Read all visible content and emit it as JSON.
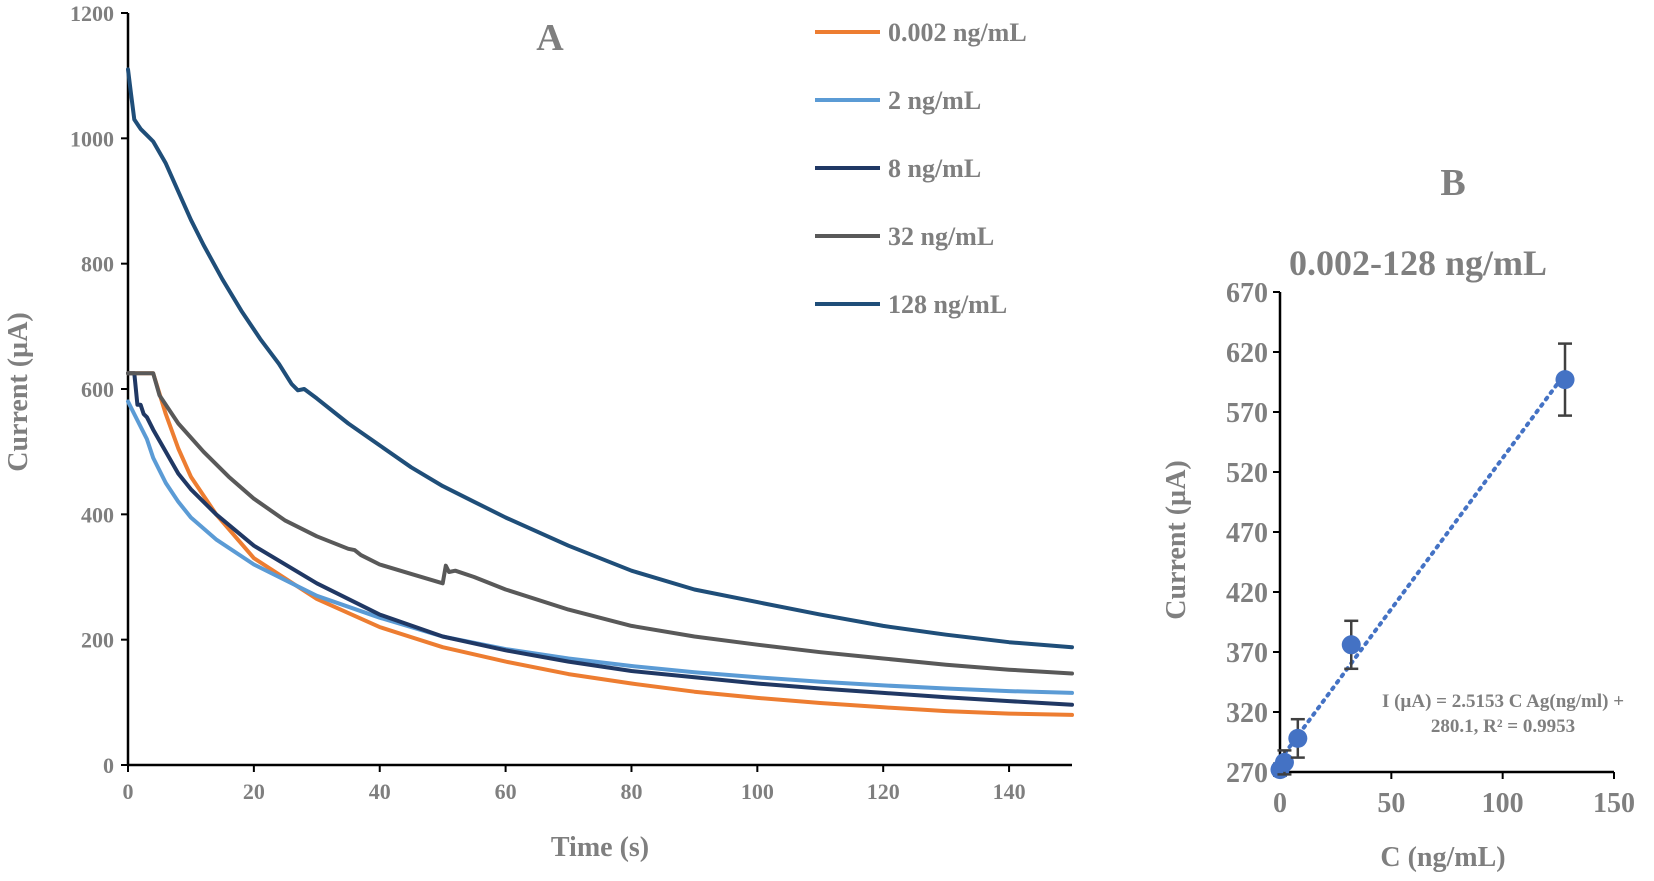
{
  "chart_data": [
    {
      "type": "line",
      "panel_label": "A",
      "title": "",
      "xlabel": "Time (s)",
      "ylabel": "Current (µA)",
      "xlim": [
        0,
        150
      ],
      "ylim": [
        0,
        1200
      ],
      "xticks": [
        0,
        20,
        40,
        60,
        80,
        100,
        120,
        140
      ],
      "yticks": [
        0,
        200,
        400,
        600,
        800,
        1000,
        1200
      ],
      "grid": false,
      "legend_position": "top-right",
      "series": [
        {
          "name": "0.002 ng/mL",
          "color": "#ED7D31",
          "x": [
            0,
            1,
            2,
            3,
            4,
            6,
            8,
            10,
            14,
            20,
            30,
            40,
            50,
            60,
            70,
            80,
            90,
            100,
            110,
            120,
            130,
            140,
            150
          ],
          "y": [
            625,
            625,
            625,
            625,
            625,
            560,
            505,
            460,
            400,
            330,
            265,
            220,
            188,
            165,
            145,
            130,
            117,
            107,
            99,
            92,
            86,
            82,
            80
          ]
        },
        {
          "name": "2 ng/mL",
          "color": "#5B9BD5",
          "x": [
            0,
            1,
            2,
            3,
            4,
            6,
            8,
            10,
            14,
            20,
            30,
            40,
            50,
            60,
            70,
            80,
            90,
            100,
            110,
            120,
            130,
            140,
            150
          ],
          "y": [
            580,
            560,
            540,
            520,
            490,
            450,
            420,
            395,
            360,
            320,
            270,
            235,
            205,
            185,
            170,
            158,
            148,
            140,
            133,
            127,
            122,
            118,
            115
          ]
        },
        {
          "name": "8 ng/mL",
          "color": "#203864",
          "x": [
            0,
            1,
            1.5,
            2,
            2.5,
            3,
            4,
            6,
            8,
            10,
            14,
            20,
            30,
            40,
            50,
            60,
            70,
            80,
            90,
            100,
            110,
            120,
            130,
            140,
            150
          ],
          "y": [
            625,
            625,
            575,
            575,
            560,
            555,
            535,
            500,
            465,
            440,
            400,
            350,
            290,
            240,
            205,
            183,
            165,
            150,
            140,
            130,
            122,
            115,
            108,
            102,
            96
          ]
        },
        {
          "name": "32 ng/mL",
          "color": "#595959",
          "x": [
            0,
            1,
            2,
            3,
            4,
            5,
            8,
            12,
            16,
            20,
            25,
            30,
            35,
            36,
            37,
            40,
            45,
            50,
            50.5,
            51,
            52,
            55,
            60,
            70,
            80,
            90,
            100,
            110,
            120,
            130,
            140,
            150
          ],
          "y": [
            625,
            625,
            625,
            625,
            625,
            590,
            545,
            500,
            460,
            425,
            390,
            365,
            345,
            343,
            335,
            320,
            305,
            290,
            318,
            308,
            310,
            300,
            280,
            248,
            222,
            205,
            192,
            180,
            170,
            160,
            152,
            146
          ]
        },
        {
          "name": "128 ng/mL",
          "color": "#1F4E79",
          "x": [
            0,
            0.5,
            1,
            2,
            3,
            4,
            6,
            8,
            10,
            12,
            15,
            18,
            21,
            24,
            26,
            27,
            28,
            30,
            35,
            40,
            45,
            50,
            55,
            60,
            70,
            80,
            90,
            100,
            110,
            120,
            130,
            140,
            150
          ],
          "y": [
            1110,
            1070,
            1030,
            1015,
            1005,
            995,
            960,
            915,
            870,
            830,
            775,
            725,
            680,
            640,
            608,
            598,
            600,
            585,
            545,
            510,
            475,
            445,
            420,
            395,
            350,
            310,
            280,
            260,
            240,
            222,
            208,
            196,
            188
          ]
        }
      ]
    },
    {
      "type": "scatter",
      "panel_label": "B",
      "title": "0.002-128 ng/mL",
      "xlabel": "C (ng/mL)",
      "ylabel": "Current (µA)",
      "xlim": [
        0,
        150
      ],
      "ylim": [
        270,
        670
      ],
      "xticks": [
        0,
        50,
        100,
        150
      ],
      "yticks": [
        270,
        320,
        370,
        420,
        470,
        520,
        570,
        620,
        670
      ],
      "grid": false,
      "marker_color": "#4472C4",
      "points": [
        {
          "x": 0.002,
          "y": 272,
          "err": 5
        },
        {
          "x": 2,
          "y": 278,
          "err": 10
        },
        {
          "x": 8,
          "y": 298,
          "err": 16
        },
        {
          "x": 32,
          "y": 376,
          "err": 20
        },
        {
          "x": 128,
          "y": 597,
          "err": 30
        }
      ],
      "trendline": {
        "type": "linear",
        "slope": 2.5153,
        "intercept": 280.1,
        "r2": 0.9953,
        "style": "dotted",
        "color": "#4472C4"
      },
      "equation_lines": [
        "I (µA) = 2.5153 C Ag(ng/ml) +",
        "280.1, R² = 0.9953"
      ]
    }
  ]
}
